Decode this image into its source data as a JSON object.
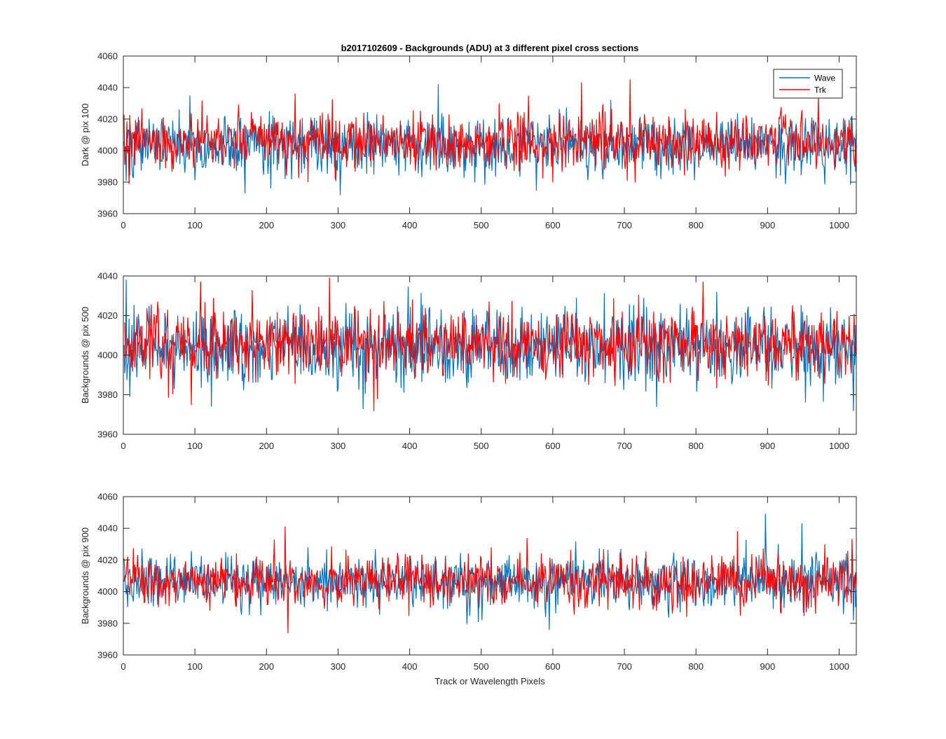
{
  "chart_data": {
    "type": "line",
    "title": "b2017102609 - Backgrounds (ADU) at 3 different pixel cross sections",
    "colors": {
      "Wave": "#0072BD",
      "Trk": "#FF0000",
      "axis": "#262626"
    },
    "xlabel": "Track or Wavelength Pixels",
    "x": {
      "start": 1,
      "end": 1024,
      "step": 1
    },
    "xlim": [
      0,
      1024
    ],
    "xticks": [
      0,
      100,
      200,
      300,
      400,
      500,
      600,
      700,
      800,
      900,
      1000
    ],
    "legend": {
      "entries": [
        "Wave",
        "Trk"
      ],
      "location": "top-right"
    },
    "subplots": [
      {
        "ylabel": "Dark @ pix 100",
        "ylim": [
          3960,
          4060
        ],
        "yticks": [
          3960,
          3980,
          4000,
          4020,
          4040,
          4060
        ],
        "series": [
          {
            "name": "Wave",
            "mean": 4004,
            "std": 9.5,
            "seed": 101,
            "extrema": [
              [
                4,
                3981
              ],
              [
                170,
                3973
              ],
              [
                303,
                3972
              ],
              [
                440,
                4042
              ],
              [
                1010,
                3985
              ]
            ]
          },
          {
            "name": "Trk",
            "mean": 4006,
            "std": 8.5,
            "seed": 202,
            "extrema": [
              [
                8,
                3979
              ],
              [
                240,
                4036
              ],
              [
                640,
                4043
              ],
              [
                708,
                4045
              ],
              [
                715,
                3980
              ],
              [
                600,
                3980
              ]
            ]
          }
        ]
      },
      {
        "ylabel": "Backgrounds @ pix 500",
        "ylim": [
          3960,
          4040
        ],
        "yticks": [
          3960,
          3980,
          4000,
          4020,
          4040
        ],
        "series": [
          {
            "name": "Wave",
            "mean": 4004,
            "std": 9,
            "seed": 303,
            "extrema": [
              [
                4,
                4038
              ],
              [
                745,
                3974
              ],
              [
                1020,
                3972
              ],
              [
                300,
                3983
              ]
            ]
          },
          {
            "name": "Trk",
            "mean": 4006,
            "std": 9,
            "seed": 404,
            "extrema": [
              [
                95,
                3975
              ],
              [
                108,
                4037
              ],
              [
                288,
                4039
              ],
              [
                355,
                3978
              ],
              [
                810,
                4037
              ]
            ]
          }
        ]
      },
      {
        "ylabel": "Backgrounds @ pix 900",
        "ylim": [
          3960,
          4060
        ],
        "yticks": [
          3960,
          3980,
          4000,
          4020,
          4040,
          4060
        ],
        "series": [
          {
            "name": "Wave",
            "mean": 4006,
            "std": 8.5,
            "seed": 505,
            "extrema": [
              [
                595,
                3976
              ],
              [
                897,
                4049
              ],
              [
                948,
                4043
              ],
              [
                1020,
                3982
              ]
            ]
          },
          {
            "name": "Trk",
            "mean": 4007,
            "std": 8,
            "seed": 606,
            "extrema": [
              [
                226,
                4041
              ],
              [
                230,
                3974
              ],
              [
                1018,
                4033
              ]
            ]
          }
        ]
      }
    ]
  }
}
